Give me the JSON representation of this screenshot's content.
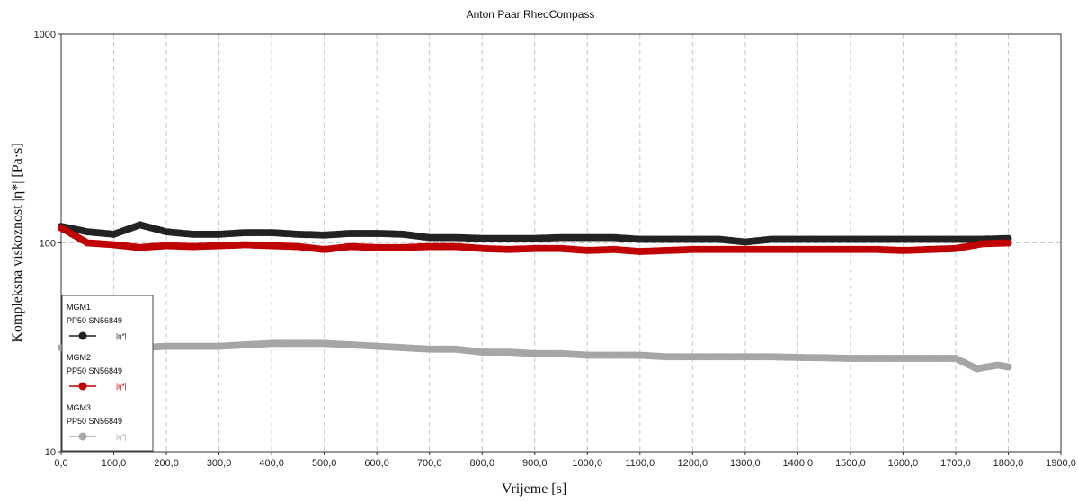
{
  "chart_data": {
    "type": "scatter",
    "title": "Anton Paar RheoCompass",
    "xlabel": "Vrijeme [s]",
    "ylabel": "Kompleksna viskoznost |η*| [Pa·s]",
    "xlim": [
      0,
      1900
    ],
    "ylim": [
      10,
      1000
    ],
    "yscale": "log",
    "x_ticks": [
      0,
      100,
      200,
      300,
      400,
      500,
      600,
      700,
      800,
      900,
      1000,
      1100,
      1200,
      1300,
      1400,
      1500,
      1600,
      1700,
      1800,
      1900
    ],
    "x_tick_labels": [
      "0,0",
      "100,0",
      "200,0",
      "300,0",
      "400,0",
      "500,0",
      "600,0",
      "700,0",
      "800,0",
      "900,0",
      "1000,0",
      "1100,0",
      "1200,0",
      "1300,0",
      "1400,0",
      "1500,0",
      "1600,0",
      "1700,0",
      "1800,0",
      "1900,0"
    ],
    "y_ticks": [
      10,
      100,
      1000
    ],
    "y_tick_labels": [
      "10",
      "100",
      "1000"
    ],
    "grid": true,
    "legend_position": "bottom-left",
    "series": [
      {
        "name": "MGM1",
        "sublabel": "PP50 SN56849",
        "symbol_label": "|η*|",
        "color": "#222222",
        "x": [
          0,
          50,
          100,
          150,
          200,
          250,
          300,
          350,
          400,
          450,
          500,
          550,
          600,
          650,
          700,
          750,
          800,
          850,
          900,
          950,
          1000,
          1050,
          1100,
          1150,
          1200,
          1250,
          1300,
          1350,
          1400,
          1450,
          1500,
          1550,
          1600,
          1650,
          1700,
          1750,
          1800
        ],
        "y": [
          120,
          113,
          110,
          122,
          113,
          110,
          110,
          112,
          112,
          110,
          109,
          111,
          111,
          110,
          106,
          106,
          105,
          105,
          105,
          106,
          106,
          106,
          104,
          104,
          104,
          104,
          101,
          104,
          104,
          104,
          104,
          104,
          104,
          104,
          104,
          104,
          105
        ]
      },
      {
        "name": "MGM2",
        "sublabel": "PP50 SN56849",
        "symbol_label": "|η*|",
        "color": "#c00000",
        "x": [
          0,
          50,
          100,
          150,
          200,
          250,
          300,
          350,
          400,
          450,
          500,
          550,
          600,
          650,
          700,
          750,
          800,
          850,
          900,
          950,
          1000,
          1050,
          1100,
          1150,
          1200,
          1250,
          1300,
          1350,
          1400,
          1450,
          1500,
          1550,
          1600,
          1650,
          1700,
          1750,
          1800
        ],
        "y": [
          118,
          100,
          98,
          95,
          97,
          96,
          97,
          98,
          97,
          96,
          93,
          96,
          95,
          95,
          96,
          96,
          94,
          93,
          94,
          94,
          92,
          93,
          91,
          92,
          93,
          93,
          93,
          93,
          93,
          93,
          93,
          93,
          92,
          93,
          94,
          99,
          100
        ]
      },
      {
        "name": "MGM3",
        "sublabel": "PP50 SN56849",
        "symbol_label": "|η*|",
        "color": "#a6a6a6",
        "x": [
          0,
          50,
          100,
          150,
          200,
          250,
          300,
          350,
          400,
          450,
          500,
          550,
          600,
          650,
          700,
          750,
          800,
          850,
          900,
          950,
          1000,
          1050,
          1100,
          1150,
          1200,
          1250,
          1300,
          1350,
          1400,
          1450,
          1500,
          1550,
          1600,
          1650,
          1700,
          1740,
          1760,
          1780,
          1800
        ],
        "y": [
          31.5,
          32,
          32,
          31.5,
          32,
          32,
          32,
          32.5,
          33,
          33,
          33,
          32.5,
          32,
          31.5,
          31,
          31,
          30,
          30,
          29.5,
          29.5,
          29,
          29,
          29,
          28.5,
          28.5,
          28.5,
          28.5,
          28.5,
          28.3,
          28.2,
          28,
          28,
          28,
          28,
          28,
          25,
          25.5,
          26,
          25.5
        ]
      }
    ]
  }
}
